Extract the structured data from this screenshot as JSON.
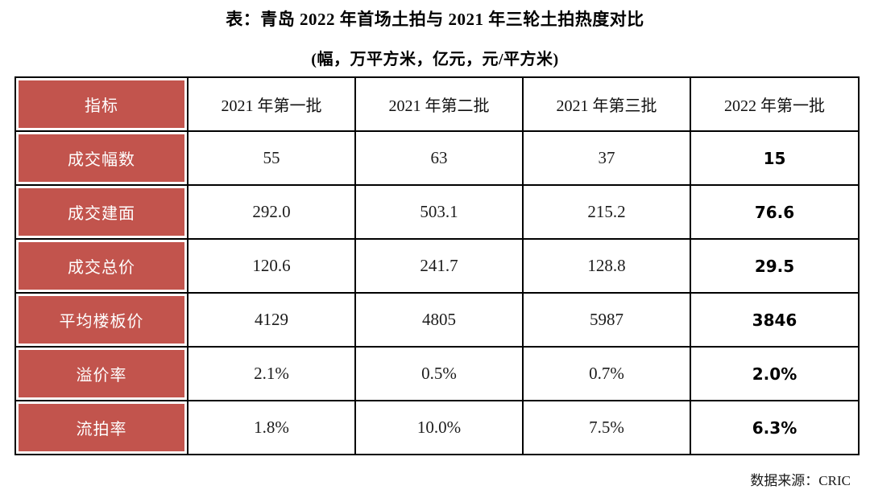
{
  "title": "表：青岛 2022 年首场土拍与 2021 年三轮土拍热度对比",
  "subtitle": "(幅，万平方米，亿元，元/平方米)",
  "source": "数据来源：CRIC",
  "colors": {
    "header_red": "#C2544D",
    "border": "#000000",
    "header_text": "#ffffff",
    "value_text": "#1c1c1c"
  },
  "chart_data": {
    "type": "table",
    "title": "青岛2022年首场土拍与2021年三轮土拍热度对比",
    "units_note": "幅，万平方米，亿元，元/平方米",
    "columns": [
      "指标",
      "2021 年第一批",
      "2021 年第二批",
      "2021 年第三批",
      "2022 年第一批"
    ],
    "rows": [
      {
        "label": "成交幅数",
        "values": [
          "55",
          "63",
          "37",
          "15"
        ]
      },
      {
        "label": "成交建面",
        "values": [
          "292.0",
          "503.1",
          "215.2",
          "76.6"
        ]
      },
      {
        "label": "成交总价",
        "values": [
          "120.6",
          "241.7",
          "128.8",
          "29.5"
        ]
      },
      {
        "label": "平均楼板价",
        "values": [
          "4129",
          "4805",
          "5987",
          "3846"
        ]
      },
      {
        "label": "溢价率",
        "values": [
          "2.1%",
          "0.5%",
          "0.7%",
          "2.0%"
        ]
      },
      {
        "label": "流拍率",
        "values": [
          "1.8%",
          "10.0%",
          "7.5%",
          "6.3%"
        ]
      }
    ],
    "emphasized_column": "2022 年第一批"
  }
}
